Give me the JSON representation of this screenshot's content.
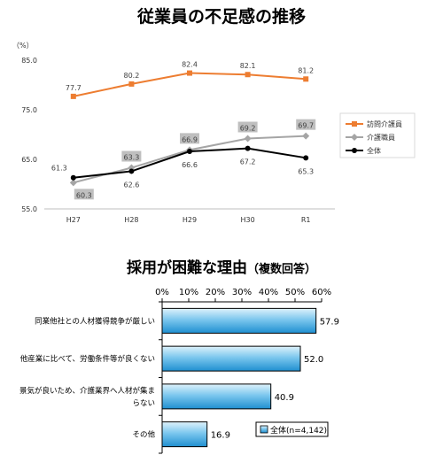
{
  "chart_data": [
    {
      "type": "line",
      "title": "従業員の不足感の推移",
      "unit_label": "（%）",
      "categories": [
        "H27",
        "H28",
        "H29",
        "H30",
        "R1"
      ],
      "ylim": [
        55.0,
        85.0
      ],
      "yticks": [
        "55.0",
        "65.0",
        "75.0",
        "85.0"
      ],
      "ytick_values": [
        55,
        65,
        75,
        85
      ],
      "grid": false,
      "legend_position": "right",
      "series": [
        {
          "name": "訪問介護員",
          "color": "#ED7D31",
          "marker": "square",
          "values": [
            77.7,
            80.2,
            82.4,
            82.1,
            81.2
          ],
          "labels": [
            "77.7",
            "80.2",
            "82.4",
            "82.1",
            "81.2"
          ]
        },
        {
          "name": "介護職員",
          "color": "#A5A5A5",
          "marker": "diamond",
          "values": [
            60.3,
            63.3,
            66.9,
            69.2,
            69.7
          ],
          "labels": [
            "60.3",
            "63.3",
            "66.9",
            "69.2",
            "69.7"
          ]
        },
        {
          "name": "全体",
          "color": "#000000",
          "marker": "circle",
          "values": [
            61.3,
            62.6,
            66.6,
            67.2,
            65.3
          ],
          "labels": [
            "61.3",
            "62.6",
            "66.6",
            "67.2",
            "65.3"
          ]
        }
      ]
    },
    {
      "type": "bar",
      "orientation": "horizontal",
      "title": "採用が困難な理由",
      "subtitle": "（複数回答）",
      "xlim": [
        0,
        60
      ],
      "xticks": [
        "0%",
        "10%",
        "20%",
        "30%",
        "40%",
        "50%",
        "60%"
      ],
      "xtick_values": [
        0,
        10,
        20,
        30,
        40,
        50,
        60
      ],
      "categories": [
        [
          "同業他社との人材獲得競争が厳しい"
        ],
        [
          "他産業に比べて、労働条件等が良くない"
        ],
        [
          "景気が良いため、介護業界へ人材が集ま",
          "らない"
        ],
        [
          "その他"
        ]
      ],
      "values": [
        57.9,
        52.0,
        40.9,
        16.9
      ],
      "labels": [
        "57.9",
        "52.0",
        "40.9",
        "16.9"
      ],
      "series_name": "全体(n=4,142)",
      "bar_color": "#2E9BD6",
      "legend_position": "bottom-right"
    }
  ]
}
